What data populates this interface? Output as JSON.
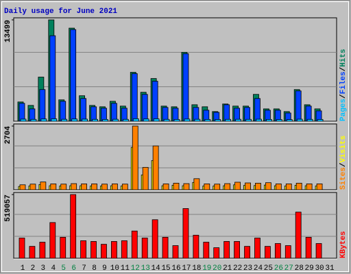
{
  "chart_data": [
    {
      "type": "bar",
      "title": "Daily usage for June 2021",
      "ylim": [
        0,
        13499
      ],
      "yticks": [
        13499
      ],
      "legend_separator": "/",
      "series": [
        {
          "name": "Pages",
          "color": "#00c0ff",
          "values": [
            280,
            250,
            300,
            320,
            260,
            300,
            280,
            250,
            240,
            260,
            250,
            330,
            300,
            320,
            250,
            240,
            290,
            260,
            240,
            230,
            250,
            260,
            250,
            270,
            240,
            230,
            220,
            270,
            250,
            240,
            null
          ]
        },
        {
          "name": "Files",
          "color": "#0040ff",
          "values": [
            2390,
            1650,
            4220,
            11390,
            2660,
            12210,
            3030,
            1930,
            1740,
            2390,
            1740,
            6340,
            3580,
            5330,
            1840,
            1740,
            9000,
            1840,
            1470,
            1190,
            2200,
            1740,
            1840,
            3030,
            1470,
            1470,
            1100,
            4040,
            2020,
            1380,
            null
          ]
        },
        {
          "name": "Hits",
          "color": "#00805c",
          "values": [
            2570,
            2110,
            5880,
            13499,
            2850,
            12400,
            3400,
            2110,
            1930,
            2660,
            2020,
            6520,
            3860,
            5690,
            2020,
            1930,
            9180,
            2200,
            1930,
            1290,
            2300,
            2020,
            2020,
            3580,
            1650,
            1650,
            1290,
            4220,
            2200,
            1650,
            null
          ]
        }
      ]
    },
    {
      "type": "bar",
      "ylim": [
        0,
        2704
      ],
      "yticks": [
        2704
      ],
      "legend_separator": "/",
      "series": [
        {
          "name": "Sites",
          "color": "#ff8000",
          "values": [
            210,
            240,
            330,
            250,
            240,
            260,
            250,
            250,
            240,
            250,
            240,
            2704,
            950,
            1860,
            250,
            280,
            260,
            470,
            250,
            240,
            260,
            320,
            290,
            280,
            300,
            250,
            250,
            280,
            250,
            250,
            null
          ]
        },
        {
          "name": "Visits",
          "color": "#ffff00",
          "values": [
            140,
            160,
            220,
            170,
            160,
            170,
            170,
            160,
            160,
            170,
            160,
            1800,
            630,
            1240,
            170,
            190,
            170,
            310,
            160,
            160,
            170,
            210,
            190,
            180,
            200,
            170,
            160,
            190,
            170,
            160,
            null
          ]
        }
      ]
    },
    {
      "type": "bar",
      "ylim": [
        0,
        519057
      ],
      "yticks": [
        519057
      ],
      "categories": [
        "1",
        "2",
        "3",
        "4",
        "5",
        "6",
        "7",
        "8",
        "9",
        "10",
        "11",
        "12",
        "13",
        "14",
        "15",
        "16",
        "17",
        "18",
        "19",
        "20",
        "21",
        "22",
        "23",
        "24",
        "25",
        "26",
        "27",
        "28",
        "29",
        "30",
        "31"
      ],
      "category_colors": [
        "#000000",
        "#000000",
        "#000000",
        "#000000",
        "#008040",
        "#008040",
        "#000000",
        "#000000",
        "#000000",
        "#000000",
        "#000000",
        "#008040",
        "#008040",
        "#000000",
        "#000000",
        "#000000",
        "#000000",
        "#000000",
        "#008040",
        "#008040",
        "#000000",
        "#000000",
        "#000000",
        "#000000",
        "#000000",
        "#008040",
        "#008040",
        "#000000",
        "#000000",
        "#000000",
        "#000000"
      ],
      "series": [
        {
          "name": "KBytes",
          "color": "#ff0000",
          "values": [
            165000,
            97000,
            131000,
            291000,
            171000,
            519057,
            143000,
            137000,
            114000,
            137000,
            143000,
            222000,
            165000,
            314000,
            171000,
            103000,
            405000,
            188000,
            131000,
            86000,
            137000,
            137000,
            97000,
            165000,
            97000,
            120000,
            103000,
            376000,
            171000,
            120000,
            null
          ]
        }
      ]
    }
  ]
}
